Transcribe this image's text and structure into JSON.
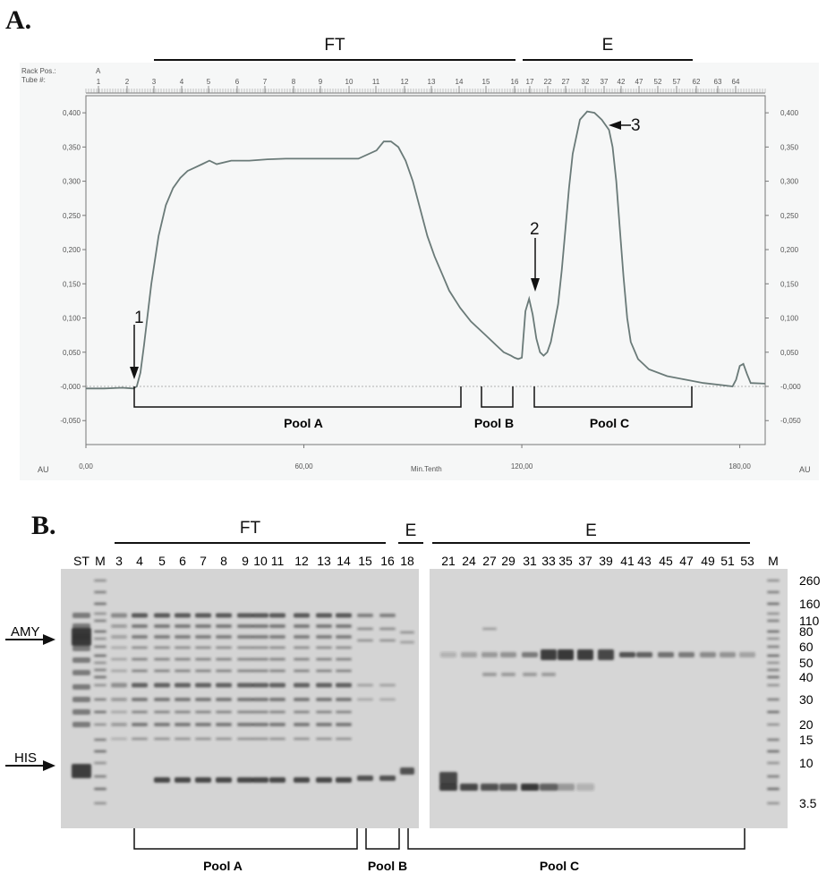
{
  "panel_a": {
    "label": "A.",
    "header_left": "FT",
    "header_right": "E",
    "rack_label": "Rack Pos.:",
    "rack_value": "A",
    "tube_label": "Tube #:",
    "ylabel": "AU",
    "ylabel_right": "AU",
    "xlabel": "Min.Tenth",
    "y_ticks": [
      "0,400",
      "0,350",
      "0,300",
      "0,250",
      "0,200",
      "0,150",
      "0,100",
      "0,050",
      "-0,000",
      "-0,050"
    ],
    "y_ticks_right": [
      "0,400",
      "0,350",
      "0,300",
      "0,250",
      "0,200",
      "0,150",
      "0,100",
      "0,050",
      "-0,000",
      "-0,050"
    ],
    "x_ticks": [
      "0,00",
      "60,00",
      "120,00",
      "180,00"
    ],
    "tube_ticks": [
      "1",
      "2",
      "3",
      "4",
      "5",
      "6",
      "7",
      "8",
      "9",
      "10",
      "11",
      "12",
      "13",
      "14",
      "15",
      "16",
      "17",
      "22",
      "27",
      "32",
      "37",
      "42",
      "47",
      "52",
      "57",
      "62",
      "63",
      "64"
    ],
    "arrows": [
      "1",
      "2",
      "3"
    ],
    "pools": [
      "Pool A",
      "Pool B",
      "Pool C"
    ]
  },
  "panel_b": {
    "label": "B.",
    "header_ft": "FT",
    "header_e_left": "E",
    "header_e_right": "E",
    "left_gel_lanes": [
      "ST",
      "M",
      "3",
      "4",
      "5",
      "6",
      "7",
      "8",
      "9",
      "10",
      "11",
      "12",
      "13",
      "14",
      "15",
      "16",
      "18"
    ],
    "right_gel_lanes": [
      "21",
      "24",
      "27",
      "29",
      "31",
      "33",
      "35",
      "37",
      "39",
      "41",
      "43",
      "45",
      "47",
      "49",
      "51",
      "53",
      "M"
    ],
    "markers": [
      "260",
      "160",
      "110",
      "80",
      "60",
      "50",
      "40",
      "30",
      "20",
      "15",
      "10",
      "3.5"
    ],
    "side_labels": [
      "AMY",
      "HIS"
    ],
    "pools": [
      "Pool A",
      "Pool B",
      "Pool C"
    ]
  },
  "chart_data": [
    {
      "type": "line",
      "title": "",
      "xlabel": "Min.Tenth",
      "ylabel": "AU",
      "xlim": [
        0,
        187
      ],
      "ylim": [
        -0.085,
        0.425
      ],
      "x_ticks": [
        0,
        60,
        120,
        180
      ],
      "y_ticks": [
        -0.05,
        0,
        0.05,
        0.1,
        0.15,
        0.2,
        0.25,
        0.3,
        0.35,
        0.4
      ],
      "grid": false,
      "series": [
        {
          "x": [
            0,
            5,
            10,
            13,
            14,
            15,
            16,
            18,
            20,
            22,
            24,
            26,
            28,
            30,
            32,
            34,
            36,
            40,
            45,
            50,
            55,
            60,
            64,
            70,
            75,
            80,
            82,
            84,
            86,
            88,
            90,
            92,
            94,
            96,
            98,
            100,
            103,
            106,
            110,
            113,
            115,
            117,
            118,
            119,
            120,
            121,
            122,
            123,
            124,
            125,
            126,
            127,
            128,
            130,
            131,
            132,
            133,
            134,
            136,
            138,
            140,
            142,
            144,
            145,
            146,
            147,
            148,
            149,
            150,
            152,
            155,
            160,
            165,
            170,
            175,
            178,
            179,
            180,
            181,
            182,
            183,
            187
          ],
          "y": [
            -0.003,
            -0.003,
            -0.002,
            -0.003,
            0.0,
            0.02,
            0.06,
            0.15,
            0.22,
            0.265,
            0.29,
            0.305,
            0.315,
            0.32,
            0.325,
            0.33,
            0.325,
            0.33,
            0.33,
            0.332,
            0.333,
            0.333,
            0.333,
            0.333,
            0.333,
            0.345,
            0.358,
            0.358,
            0.35,
            0.33,
            0.3,
            0.26,
            0.22,
            0.19,
            0.165,
            0.14,
            0.115,
            0.095,
            0.075,
            0.06,
            0.05,
            0.045,
            0.042,
            0.04,
            0.042,
            0.11,
            0.128,
            0.105,
            0.07,
            0.05,
            0.045,
            0.05,
            0.065,
            0.12,
            0.17,
            0.23,
            0.29,
            0.34,
            0.39,
            0.402,
            0.4,
            0.39,
            0.375,
            0.35,
            0.3,
            0.23,
            0.16,
            0.1,
            0.065,
            0.04,
            0.025,
            0.015,
            0.01,
            0.005,
            0.002,
            0.0,
            0.01,
            0.03,
            0.033,
            0.018,
            0.005,
            0.004
          ]
        }
      ],
      "annotations": [
        {
          "label": "1",
          "x": 14,
          "y": 0.0
        },
        {
          "label": "2",
          "x": 122,
          "y": 0.128
        },
        {
          "label": "3",
          "x": 140,
          "y": 0.4
        }
      ]
    },
    {
      "type": "gel",
      "title": "",
      "lanes_left": [
        "ST",
        "M",
        "3",
        "4",
        "5",
        "6",
        "7",
        "8",
        "9",
        "10",
        "11",
        "12",
        "13",
        "14",
        "15",
        "16",
        "18"
      ],
      "lanes_right": [
        "21",
        "24",
        "27",
        "29",
        "31",
        "33",
        "35",
        "37",
        "39",
        "41",
        "43",
        "45",
        "47",
        "49",
        "51",
        "53",
        "M"
      ],
      "marker_kda": [
        260,
        160,
        110,
        80,
        60,
        50,
        40,
        30,
        20,
        15,
        10,
        3.5
      ]
    }
  ],
  "colors": {
    "trace": "#6a7a78",
    "gel_bg": "#d4d4d4",
    "band": "#333333",
    "chrom_bg": "#f6f7f7"
  }
}
